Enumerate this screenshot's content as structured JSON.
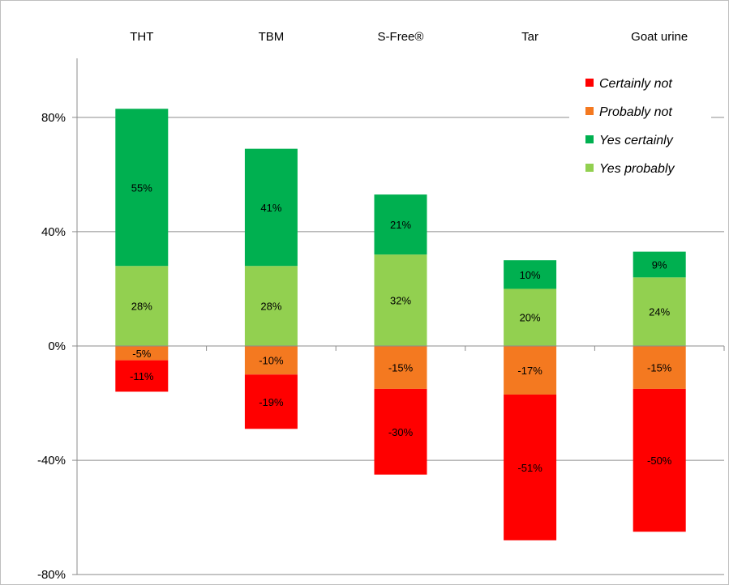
{
  "chart_data": {
    "type": "bar",
    "stacked": true,
    "categories": [
      "THT",
      "TBM",
      "S-Free®",
      "Tar",
      "Goat urine"
    ],
    "series": [
      {
        "name": "Certainly not",
        "color": "#ff0000",
        "values": [
          -11,
          -19,
          -30,
          -51,
          -50
        ],
        "labels": [
          "-11%",
          "-19%",
          "-30%",
          "-51%",
          "-50%"
        ]
      },
      {
        "name": "Probably not",
        "color": "#f47920",
        "values": [
          -5,
          -10,
          -15,
          -17,
          -15
        ],
        "labels": [
          "-5%",
          "-10%",
          "-15%",
          "-17%",
          "-15%"
        ]
      },
      {
        "name": "Yes certainly",
        "color": "#00b050",
        "values": [
          55,
          41,
          21,
          10,
          9
        ],
        "labels": [
          "55%",
          "41%",
          "21%",
          "10%",
          "9%"
        ]
      },
      {
        "name": "Yes probably",
        "color": "#92d050",
        "values": [
          28,
          28,
          32,
          20,
          24
        ],
        "labels": [
          "28%",
          "28%",
          "32%",
          "20%",
          "24%"
        ]
      }
    ],
    "stack_order_positive": [
      "Yes probably",
      "Yes certainly"
    ],
    "stack_order_negative": [
      "Probably not",
      "Certainly not"
    ],
    "ylim": [
      -80,
      100
    ],
    "yticks": [
      -80,
      -40,
      0,
      40,
      80
    ],
    "ytick_labels": [
      "-80%",
      "-40%",
      "0%",
      "40%",
      "80%"
    ],
    "category_labels_position": "top",
    "grid": true,
    "legend": {
      "position": "top-right",
      "entries": [
        "Certainly not",
        "Probably not",
        "Yes certainly",
        "Yes probably"
      ]
    },
    "title": "",
    "xlabel": "",
    "ylabel": ""
  }
}
